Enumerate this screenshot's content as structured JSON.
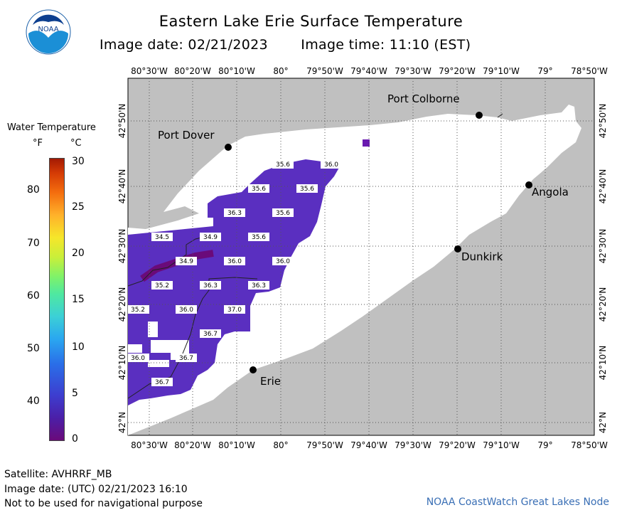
{
  "header": {
    "title": "Eastern Lake Erie Surface Temperature",
    "image_date": "Image date: 02/21/2023",
    "image_time": "Image time: 11:10 (EST)"
  },
  "logo": {
    "text": "NOAA",
    "icon": "noaa-logo-icon"
  },
  "legend": {
    "title": "Water Temperature",
    "unit_f": "°F",
    "unit_c": "°C",
    "fahrenheit_ticks": [
      "80",
      "70",
      "60",
      "50",
      "40"
    ],
    "celsius_ticks": [
      "30",
      "25",
      "20",
      "15",
      "10",
      "5",
      "0"
    ],
    "colors": {
      "low": "#6a0a7a",
      "mid": "#4fe8a0",
      "high": "#a31a04"
    }
  },
  "map": {
    "lon_labels": [
      "80°30'W",
      "80°20'W",
      "80°10'W",
      "80°",
      "79°50'W",
      "79°40'W",
      "79°30'W",
      "79°20'W",
      "79°10'W",
      "79°",
      "78°50'W"
    ],
    "lat_labels": [
      "42°50'N",
      "42°40'N",
      "42°30'N",
      "42°20'N",
      "42°10'N",
      "42°N"
    ],
    "cities": [
      {
        "name": "Port Colborne"
      },
      {
        "name": "Port Dover"
      },
      {
        "name": "Angola"
      },
      {
        "name": "Dunkirk"
      },
      {
        "name": "Erie"
      }
    ],
    "colors": {
      "land": "#c0c0c0",
      "lake": "#ffffff",
      "water_temp": "#5a2fc0",
      "water_cold": "#5b1d9e"
    },
    "temperature_labels": [
      "35.6",
      "36.0",
      "35.6",
      "35.6",
      "36.3",
      "35.6",
      "34.5",
      "34.9",
      "35.6",
      "34.9",
      "36.0",
      "36.0",
      "35.2",
      "36.3",
      "36.3",
      "35.2",
      "36.0",
      "37.0",
      "36.7",
      "36.0",
      "36.7",
      "36.7"
    ]
  },
  "footer": {
    "satellite": "Satellite: AVHRRF_MB",
    "utc_date": "Image date: (UTC) 02/21/2023  16:10",
    "warning": "Not to be used for navigational purpose",
    "node": "NOAA CoastWatch Great Lakes Node"
  }
}
